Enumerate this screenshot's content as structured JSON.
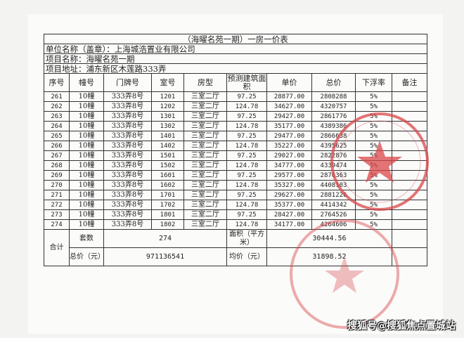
{
  "title": "（海曜名苑一期）一房一价表",
  "company": "单位名称（盖章）：上海城浩置业有限公司",
  "project_name": "项目名称：海曜名苑一期",
  "project_address": "项目地址：浦东新区木莲路333弄",
  "columns": [
    "序号",
    "幢号",
    "门牌号",
    "室号",
    "房型",
    "预测建筑面积",
    "单价",
    "总价",
    "下浮率",
    "备注"
  ],
  "rows": [
    [
      "261",
      "10幢",
      "333弄8号",
      "1201",
      "三室二厅",
      "97.25",
      "28877.00",
      "2808288",
      "5%",
      ""
    ],
    [
      "262",
      "10幢",
      "333弄8号",
      "1202",
      "三室二厅",
      "124.78",
      "34627.00",
      "4320757",
      "5%",
      ""
    ],
    [
      "263",
      "10幢",
      "333弄8号",
      "1301",
      "三室二厅",
      "97.25",
      "29427.00",
      "2861776",
      "5%",
      ""
    ],
    [
      "264",
      "10幢",
      "333弄8号",
      "1302",
      "三室二厅",
      "124.78",
      "35177.00",
      "4389386",
      "5%",
      ""
    ],
    [
      "265",
      "10幢",
      "333弄8号",
      "1401",
      "三室二厅",
      "97.25",
      "29477.00",
      "2866638",
      "5%",
      ""
    ],
    [
      "266",
      "10幢",
      "333弄8号",
      "1402",
      "三室二厅",
      "124.78",
      "35227.00",
      "4395625",
      "5%",
      ""
    ],
    [
      "267",
      "10幢",
      "333弄8号",
      "1501",
      "三室二厅",
      "97.25",
      "29027.00",
      "2822876",
      "5%",
      ""
    ],
    [
      "268",
      "10幢",
      "333弄8号",
      "1502",
      "三室二厅",
      "124.78",
      "34777.00",
      "4339474",
      "5%",
      ""
    ],
    [
      "269",
      "10幢",
      "333弄8号",
      "1601",
      "三室二厅",
      "97.25",
      "29577.00",
      "2876363",
      "5%",
      ""
    ],
    [
      "270",
      "10幢",
      "333弄8号",
      "1602",
      "三室二厅",
      "124.78",
      "35327.00",
      "4408103",
      "5%",
      ""
    ],
    [
      "271",
      "10幢",
      "333弄8号",
      "1701",
      "三室二厅",
      "97.25",
      "29627.00",
      "2881226",
      "5%",
      ""
    ],
    [
      "272",
      "10幢",
      "333弄8号",
      "1702",
      "三室二厅",
      "124.78",
      "35377.00",
      "4414342",
      "5%",
      ""
    ],
    [
      "273",
      "10幢",
      "333弄8号",
      "1801",
      "三室二厅",
      "97.25",
      "28427.00",
      "2764526",
      "5%",
      ""
    ],
    [
      "274",
      "10幢",
      "333弄8号",
      "1802",
      "三室二厅",
      "124.78",
      "34177.00",
      "4264606",
      "5%",
      ""
    ]
  ],
  "totals": {
    "label": "合计",
    "units_label": "套数",
    "units": "274",
    "area_label": "面积（平方米）",
    "area": "30444.56",
    "total_price_label": "总价（元）",
    "total_price": "971136541",
    "avg_price_label": "均价（元）",
    "avg_price": "31898.52"
  },
  "watermark": "搜狐号@搜狐焦点置城站",
  "stamp_color": "#d9474a"
}
